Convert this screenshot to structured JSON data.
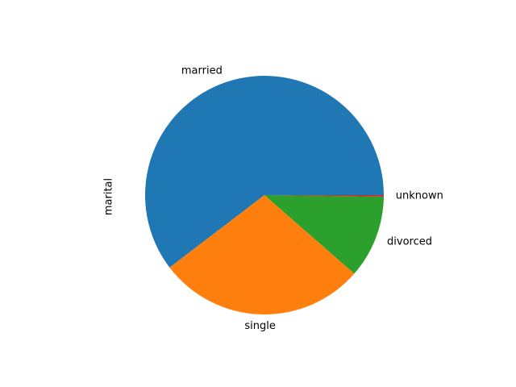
{
  "chart_data": {
    "type": "pie",
    "ylabel": "marital",
    "start_angle_deg": 0,
    "direction": "counterclockwise",
    "slices": [
      {
        "label": "married",
        "value": 60.2,
        "color": "#1f77b4"
      },
      {
        "label": "single",
        "value": 28.1,
        "color": "#ff7f0e"
      },
      {
        "label": "divorced",
        "value": 11.2,
        "color": "#2ca02c"
      },
      {
        "label": "unknown",
        "value": 0.2,
        "color": "#d62728"
      }
    ]
  }
}
